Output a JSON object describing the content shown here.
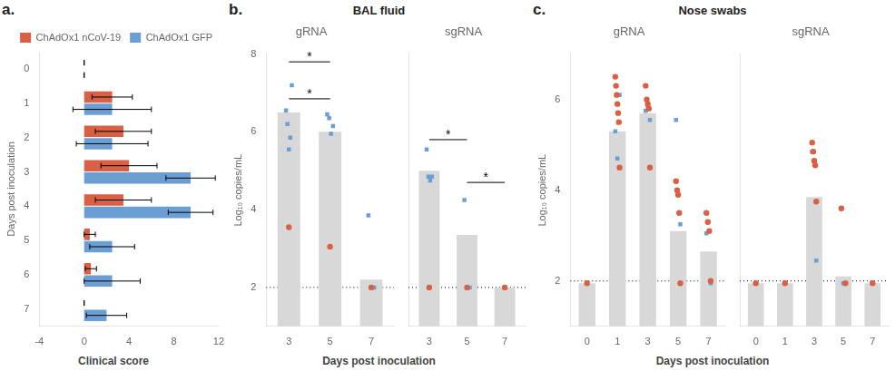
{
  "chart_data": [
    {
      "type": "bar",
      "orientation": "horizontal",
      "annotations": [
        {
          "text": "a."
        }
      ],
      "xlabel": "Clinical score",
      "ylabel": "Days post inoculation",
      "categories": [
        0,
        1,
        2,
        3,
        4,
        5,
        6,
        7
      ],
      "series": [
        {
          "name": "ChAdOx1 nCoV-19",
          "color": "#d95f45",
          "values": [
            0.0,
            2.5,
            3.5,
            4.0,
            3.5,
            0.5,
            0.6,
            0.0
          ],
          "errors": [
            0.0,
            1.8,
            2.5,
            2.5,
            2.5,
            0.5,
            0.5,
            0.0
          ]
        },
        {
          "name": "ChAdOx1 GFP",
          "color": "#6b9fd4",
          "values": [
            0.0,
            2.5,
            2.5,
            9.5,
            9.5,
            2.5,
            2.5,
            2.0
          ],
          "errors": [
            0.0,
            3.5,
            3.2,
            2.2,
            2.0,
            2.0,
            2.5,
            1.8
          ]
        }
      ],
      "xlim": [
        -4,
        12
      ],
      "xticks": [
        -4,
        0,
        4,
        8,
        12
      ],
      "legend": "upper right",
      "grid": false
    },
    {
      "type": "bar",
      "title": "BAL fluid",
      "subtitle": "gRNA",
      "annotations": [
        {
          "text": "b."
        },
        {
          "from": 3,
          "to": 5,
          "y": 7.8,
          "text": "*"
        },
        {
          "from": 3,
          "to": 5,
          "y": 6.85,
          "text": "*"
        }
      ],
      "xlabel": "Days post inoculation",
      "ylabel": "Log₁₀ copies/mL",
      "categories": [
        3,
        5,
        7
      ],
      "series": [
        {
          "type": "bar",
          "color": "#d8d8d8",
          "values": [
            6.5,
            6.0,
            2.2
          ]
        },
        {
          "type": "scatter",
          "marker": "circle",
          "color": "#d95f45",
          "values": [
            [
              3.55
            ],
            [
              3.05
            ],
            [
              2.0
            ]
          ]
        },
        {
          "type": "scatter",
          "marker": "square",
          "color": "#6b9fd4",
          "values": [
            [
              6.55,
              6.2,
              5.55,
              5.85,
              7.2
            ],
            [
              6.45,
              6.35,
              5.95,
              6.15
            ],
            [
              3.85,
              2.0
            ]
          ]
        }
      ],
      "hlines": [
        {
          "y": 2.0,
          "line_style": "dotted"
        }
      ],
      "ylim": [
        1,
        8
      ],
      "yticks": [
        2,
        4,
        6,
        8
      ],
      "grid": false
    },
    {
      "type": "bar",
      "subtitle": "sgRNA",
      "annotations": [
        {
          "from": 3,
          "to": 5,
          "y": 5.8,
          "text": "*"
        },
        {
          "from": 5,
          "to": 7,
          "y": 4.7,
          "text": "*"
        }
      ],
      "categories": [
        3,
        5,
        7
      ],
      "series": [
        {
          "type": "bar",
          "color": "#d8d8d8",
          "values": [
            5.0,
            3.35,
            2.0
          ]
        },
        {
          "type": "scatter",
          "marker": "circle",
          "color": "#d95f45",
          "values": [
            [
              2.0
            ],
            [
              2.0
            ],
            [
              2.0
            ]
          ]
        },
        {
          "type": "scatter",
          "marker": "square",
          "color": "#6b9fd4",
          "values": [
            [
              5.55,
              4.85,
              4.75,
              4.85
            ],
            [
              4.25,
              2.0
            ],
            [
              2.0
            ]
          ]
        }
      ],
      "hlines": [
        {
          "y": 2.0,
          "line_style": "dotted"
        }
      ],
      "ylim": [
        1,
        8
      ],
      "yticks": [
        2,
        4,
        6,
        8
      ],
      "grid": false,
      "tick_labels": "x"
    },
    {
      "type": "bar",
      "title": "Nose swabs",
      "subtitle": "gRNA",
      "annotations": [
        {
          "text": "c."
        }
      ],
      "xlabel": "Days post inoculation",
      "ylabel": "Log₁₀ copies/mL",
      "categories": [
        0,
        1,
        3,
        5,
        7
      ],
      "series": [
        {
          "type": "bar",
          "color": "#d8d8d8",
          "values": [
            1.95,
            5.3,
            5.7,
            3.1,
            2.65
          ]
        },
        {
          "type": "scatter",
          "marker": "circle",
          "color": "#d95f45",
          "values": [
            [
              1.95
            ],
            [
              6.5,
              6.3,
              6.1,
              5.9,
              5.7,
              5.5,
              4.5
            ],
            [
              6.3,
              6.0,
              5.9,
              5.8,
              4.5
            ],
            [
              4.2,
              4.0,
              3.9,
              3.5,
              1.95
            ],
            [
              3.5,
              3.3,
              3.1,
              2.0
            ]
          ]
        },
        {
          "type": "scatter",
          "marker": "square",
          "color": "#6b9fd4",
          "values": [
            [
              1.95
            ],
            [
              5.3,
              4.7,
              6.1
            ],
            [
              5.75,
              5.85,
              5.55
            ],
            [
              5.55,
              3.25
            ],
            [
              3.05,
              1.95
            ]
          ]
        }
      ],
      "hlines": [
        {
          "y": 2.0,
          "line_style": "dotted"
        }
      ],
      "ylim": [
        1,
        7
      ],
      "yticks": [
        2,
        4,
        6
      ],
      "grid": false
    },
    {
      "type": "bar",
      "subtitle": "sgRNA",
      "categories": [
        0,
        1,
        3,
        5,
        7
      ],
      "series": [
        {
          "type": "bar",
          "color": "#d8d8d8",
          "values": [
            1.95,
            1.95,
            3.85,
            2.1,
            1.95
          ]
        },
        {
          "type": "scatter",
          "marker": "circle",
          "color": "#d95f45",
          "values": [
            [
              1.95
            ],
            [
              1.95
            ],
            [
              5.05,
              4.85,
              4.65,
              4.55,
              3.75
            ],
            [
              3.6,
              1.95
            ],
            [
              1.95
            ]
          ]
        },
        {
          "type": "scatter",
          "marker": "square",
          "color": "#6b9fd4",
          "values": [
            [
              1.95
            ],
            [
              1.95
            ],
            [
              4.85,
              2.45
            ],
            [
              1.95
            ],
            [
              1.95
            ]
          ]
        }
      ],
      "hlines": [
        {
          "y": 2.0,
          "line_style": "dotted"
        }
      ],
      "ylim": [
        1,
        7
      ],
      "yticks": [
        2,
        4,
        6
      ],
      "grid": false,
      "tick_labels": "x"
    }
  ]
}
